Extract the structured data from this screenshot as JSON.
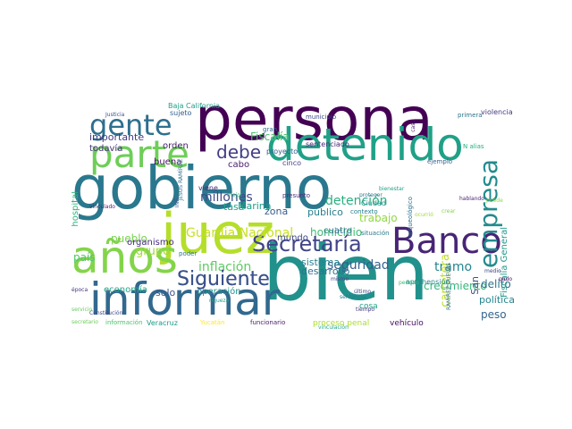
{
  "words": [
    {
      "text": "persona",
      "color": "#440154"
    },
    {
      "text": "gobierno",
      "color": "#2a788e"
    },
    {
      "text": "bien",
      "color": "#21918c"
    },
    {
      "text": "informar",
      "color": "#31688e"
    },
    {
      "text": "juez",
      "color": "#b5de2b"
    },
    {
      "text": "años",
      "color": "#84d44b"
    },
    {
      "text": "Banco",
      "color": "#482475"
    },
    {
      "text": "detenido",
      "color": "#1fa187"
    },
    {
      "text": "parte",
      "color": "#6ece58"
    },
    {
      "text": "gente",
      "color": "#2e6f8e"
    },
    {
      "text": "empresa",
      "color": "#228b8d"
    },
    {
      "text": "Secretaría",
      "color": "#414487"
    },
    {
      "text": "Siguiente",
      "color": "#3b528b"
    },
    {
      "text": "debe",
      "color": "#433e85"
    },
    {
      "text": "Guardia Nacional",
      "color": "#c8e020"
    },
    {
      "text": "detención",
      "color": "#29af7f"
    },
    {
      "text": "homicidio",
      "color": "#3dbc74"
    },
    {
      "text": "Fiscalía",
      "color": "#4ac16d"
    },
    {
      "text": "crecimiento",
      "color": "#35b779"
    },
    {
      "text": "inflación",
      "color": "#5ec962"
    },
    {
      "text": "seguridad",
      "color": "#355f8d"
    },
    {
      "text": "trabajo",
      "color": "#90d743"
    },
    {
      "text": "desarrollo",
      "color": "#2c728e"
    },
    {
      "text": "sistema",
      "color": "#26828e"
    },
    {
      "text": "millones",
      "color": "#3e4a89"
    },
    {
      "text": "grupo",
      "color": "#a0da39"
    },
    {
      "text": "Siguiente",
      "color": "#3b528b"
    },
    {
      "text": "importante",
      "color": "#453781"
    },
    {
      "text": "todavía",
      "color": "#46307e"
    },
    {
      "text": "orden",
      "color": "#481f70"
    },
    {
      "text": "buena",
      "color": "#471063"
    },
    {
      "text": "cabo",
      "color": "#481a6c"
    },
    {
      "text": "mundo",
      "color": "#3f4788"
    },
    {
      "text": "zona",
      "color": "#375b8d"
    },
    {
      "text": "cuatro",
      "color": "#2d708e"
    },
    {
      "text": "público",
      "color": "#277f8e"
    },
    {
      "text": "Marina",
      "color": "#1e9c89"
    },
    {
      "text": "tasa",
      "color": "#20a386"
    },
    {
      "text": "país",
      "color": "#52c569"
    },
    {
      "text": "pueblo",
      "color": "#7ad151"
    },
    {
      "text": "organismo",
      "color": "#472d7b"
    },
    {
      "text": "economía",
      "color": "#22a884"
    },
    {
      "text": "operación",
      "color": "#1f948c"
    },
    {
      "text": "solo",
      "color": "#3a548c"
    },
    {
      "text": "peso",
      "color": "#32648e"
    },
    {
      "text": "política",
      "color": "#24868e"
    },
    {
      "text": "tramo",
      "color": "#25848e"
    },
    {
      "text": "carretera",
      "color": "#bddf26"
    },
    {
      "text": "delito",
      "color": "#2c738e"
    },
    {
      "text": "San",
      "color": "#3c4f8a"
    },
    {
      "text": "Fiscalía General",
      "color": "#1f998a"
    },
    {
      "text": "proceso penal",
      "color": "#addc30"
    },
    {
      "text": "vehículo",
      "color": "#470e61"
    },
    {
      "text": "hospital",
      "color": "#2fb47c"
    },
    {
      "text": "sentenciado",
      "color": "#482878"
    },
    {
      "text": "Baja California",
      "color": "#1fa088"
    },
    {
      "text": "sujeto",
      "color": "#34618d"
    },
    {
      "text": "Ciudad",
      "color": "#20928c"
    },
    {
      "text": "contexto",
      "color": "#287d8e"
    },
    {
      "text": "situación",
      "color": "#29798e"
    },
    {
      "text": "municipio",
      "color": "#3f4889"
    },
    {
      "text": "gran",
      "color": "#2f6b8e"
    },
    {
      "text": "cinco",
      "color": "#404588"
    },
    {
      "text": "viene",
      "color": "#482979"
    },
    {
      "text": "proyecto",
      "color": "#365c8d"
    },
    {
      "text": "Veracruz",
      "color": "#1e9b8a"
    },
    {
      "text": "Yucatán",
      "color": "#fde725"
    },
    {
      "text": "funcionario",
      "color": "#48186a"
    },
    {
      "text": "cosa",
      "color": "#1fa187"
    },
    {
      "text": "aprehensión",
      "color": "#238a8d"
    },
    {
      "text": "violencia",
      "color": "#453882"
    },
    {
      "text": "primera",
      "color": "#2b758e"
    },
    {
      "text": "información",
      "color": "#4cc26c"
    },
    {
      "text": "secretario",
      "color": "#6ccd5a"
    },
    {
      "text": "N alias",
      "color": "#26ad81"
    },
    {
      "text": "ejemplo",
      "color": "#33638d"
    },
    {
      "text": "presunto",
      "color": "#472c7a"
    },
    {
      "text": "Justicia",
      "color": "#3b518b"
    },
    {
      "text": "poder",
      "color": "#2a778e"
    },
    {
      "text": "riqueza",
      "color": "#1f9f88"
    },
    {
      "text": "mismo",
      "color": "#3e4c8a"
    },
    {
      "text": "vinculado",
      "color": "#481c6e"
    },
    {
      "text": "JESÚS RAMÍREZ",
      "color": "#2d718e"
    },
    {
      "text": "INE",
      "color": "#39568c"
    },
    {
      "text": "caso",
      "color": "#481467"
    },
    {
      "text": "proteger",
      "color": "#2a768e"
    },
    {
      "text": "mejor",
      "color": "#31b57b"
    },
    {
      "text": "crear",
      "color": "#84d44b"
    },
    {
      "text": "tiempo",
      "color": "#453781"
    },
    {
      "text": "sentencia",
      "color": "#2a788e"
    },
    {
      "text": "bienestar",
      "color": "#1f9e89"
    },
    {
      "text": "Constitución",
      "color": "#3e4989"
    },
    {
      "text": "época",
      "color": "#46337f"
    },
    {
      "text": "servicio",
      "color": "#63cb5f"
    },
    {
      "text": "vinculación",
      "color": "#22a785"
    },
    {
      "text": "periodo",
      "color": "#3aba76"
    },
    {
      "text": "último",
      "color": "#404387"
    },
    {
      "text": "RAMÍREZ CUEVAS",
      "color": "#2e6d8e"
    },
    {
      "text": "arqueológico",
      "color": "#2c718e"
    },
    {
      "text": "hablando",
      "color": "#482475"
    },
    {
      "text": "medio",
      "color": "#414487"
    },
    {
      "text": "pudo",
      "color": "#46075a"
    },
    {
      "text": "puede",
      "color": "#8fd744"
    },
    {
      "text": "ocurrió",
      "color": "#a2da37"
    }
  ]
}
